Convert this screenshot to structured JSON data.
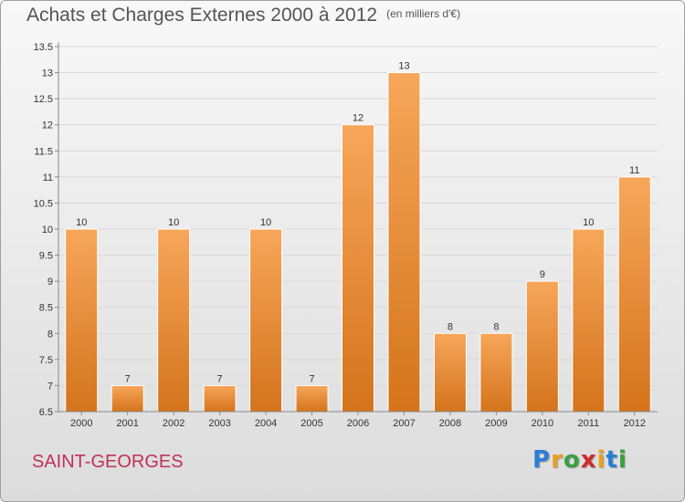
{
  "title": "Achats et Charges Externes 2000 à 2012",
  "subtitle": "(en milliers d'€)",
  "commune": "SAINT-GEORGES",
  "logo": {
    "text": "Proxiti",
    "letters": [
      {
        "ch": "P",
        "color": "#2a7fd4"
      },
      {
        "ch": "r",
        "color": "#e8a020"
      },
      {
        "ch": "o",
        "color": "#3aa040"
      },
      {
        "ch": "x",
        "color": "#d02a2a"
      },
      {
        "ch": "i",
        "color": "#e8a020"
      },
      {
        "ch": "t",
        "color": "#2a7fd4"
      },
      {
        "ch": "i",
        "color": "#3aa040"
      }
    ]
  },
  "colors": {
    "bar_top": "#f7a65a",
    "bar_bottom": "#d4741c",
    "axis": "#888888",
    "grid": "#d8d8d8",
    "text": "#333333"
  },
  "chart_data": {
    "type": "bar",
    "categories": [
      "2000",
      "2001",
      "2002",
      "2003",
      "2004",
      "2005",
      "2006",
      "2007",
      "2008",
      "2009",
      "2010",
      "2011",
      "2012"
    ],
    "values": [
      10,
      7,
      10,
      7,
      10,
      7,
      12,
      13,
      8,
      8,
      9,
      10,
      11
    ],
    "data_labels": [
      "10",
      "7",
      "10",
      "7",
      "10",
      "7",
      "12",
      "13",
      "8",
      "8",
      "9",
      "10",
      "11"
    ],
    "yticks": [
      "6.5",
      "7",
      "7.5",
      "8",
      "8.5",
      "9",
      "9.5",
      "10",
      "10.5",
      "11",
      "11.5",
      "12",
      "12.5",
      "13",
      "13.5"
    ],
    "ylim": [
      6.5,
      13.5
    ],
    "grid": true,
    "legend": "none"
  }
}
